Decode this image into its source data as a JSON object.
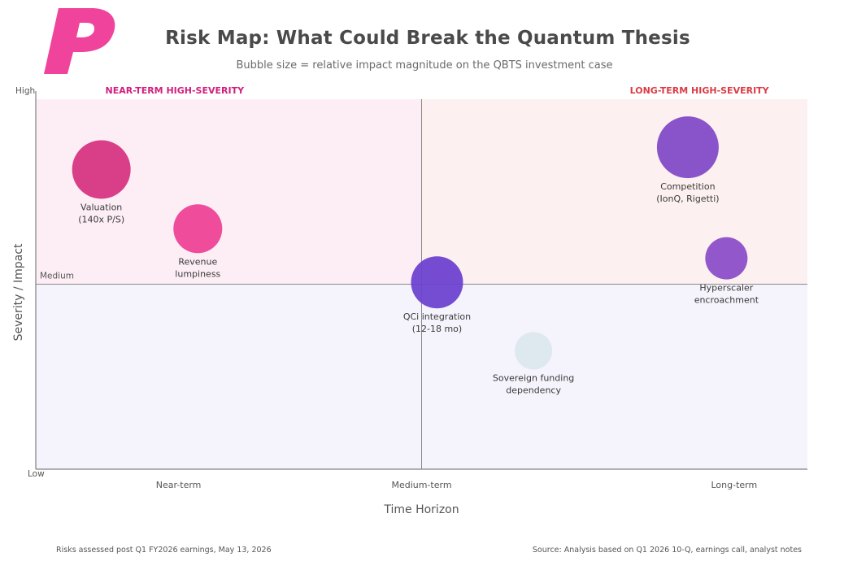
{
  "header": {
    "title": "Risk Map: What Could Break the Quantum Thesis",
    "subtitle": "Bubble size = relative impact magnitude on the QBTS investment case"
  },
  "footer": {
    "left": "Risks assessed post Q1 FY2026 earnings, May 13, 2026",
    "right": "Source: Analysis based on Q1 2026 10-Q, earnings call, analyst notes"
  },
  "colors": {
    "brand_pink": "#f0449c",
    "near_term_quadrant": "#fdeef5",
    "long_term_quadrant": "#fdf0f1",
    "lower_quadrant": "#f5f3fb",
    "near_term_label": "#d11f7f",
    "long_term_label": "#dc3b43"
  },
  "chart_data": {
    "type": "scatter",
    "title": "Risk Map: What Could Break the Quantum Thesis",
    "subtitle": "Bubble size = relative impact magnitude on the QBTS investment case",
    "xlabel": "Time Horizon",
    "ylabel": "Severity / Impact",
    "xlim": [
      0,
      1
    ],
    "ylim": [
      0,
      1
    ],
    "x_ticks": [
      {
        "label": "Near-term",
        "value": 0.185
      },
      {
        "label": "Medium-term",
        "value": 0.5
      },
      {
        "label": "Long-term",
        "value": 0.905
      }
    ],
    "y_ticks": [
      {
        "label": "High",
        "value": 1.0
      },
      {
        "label": "Medium",
        "value": 0.5
      },
      {
        "label": "Low",
        "value": 0.0
      }
    ],
    "quadrant_labels": [
      {
        "text": "NEAR-TERM HIGH-SEVERITY",
        "color": "#d11f7f"
      },
      {
        "text": "LONG-TERM HIGH-SEVERITY",
        "color": "#dc3b43"
      }
    ],
    "grid": false,
    "points": [
      {
        "label_lines": [
          "Valuation",
          "(140x P/S)"
        ],
        "x": 0.085,
        "y": 0.81,
        "size": 36,
        "color": "#d6317f"
      },
      {
        "label_lines": [
          "Revenue",
          "lumpiness"
        ],
        "x": 0.21,
        "y": 0.65,
        "size": 30,
        "color": "#ef3f94"
      },
      {
        "label_lines": [
          "QCi integration",
          "(12-18 mo)"
        ],
        "x": 0.52,
        "y": 0.505,
        "size": 32,
        "color": "#6b3fcf"
      },
      {
        "label_lines": [
          "Sovereign funding",
          "dependency"
        ],
        "x": 0.645,
        "y": 0.32,
        "size": 23,
        "color": "#dbe6ee"
      },
      {
        "label_lines": [
          "Competition",
          "(IonQ, Rigetti)"
        ],
        "x": 0.845,
        "y": 0.87,
        "size": 38,
        "color": "#8048c6"
      },
      {
        "label_lines": [
          "Hyperscaler",
          "encroachment"
        ],
        "x": 0.895,
        "y": 0.57,
        "size": 26,
        "color": "#8a4cc8"
      }
    ]
  }
}
